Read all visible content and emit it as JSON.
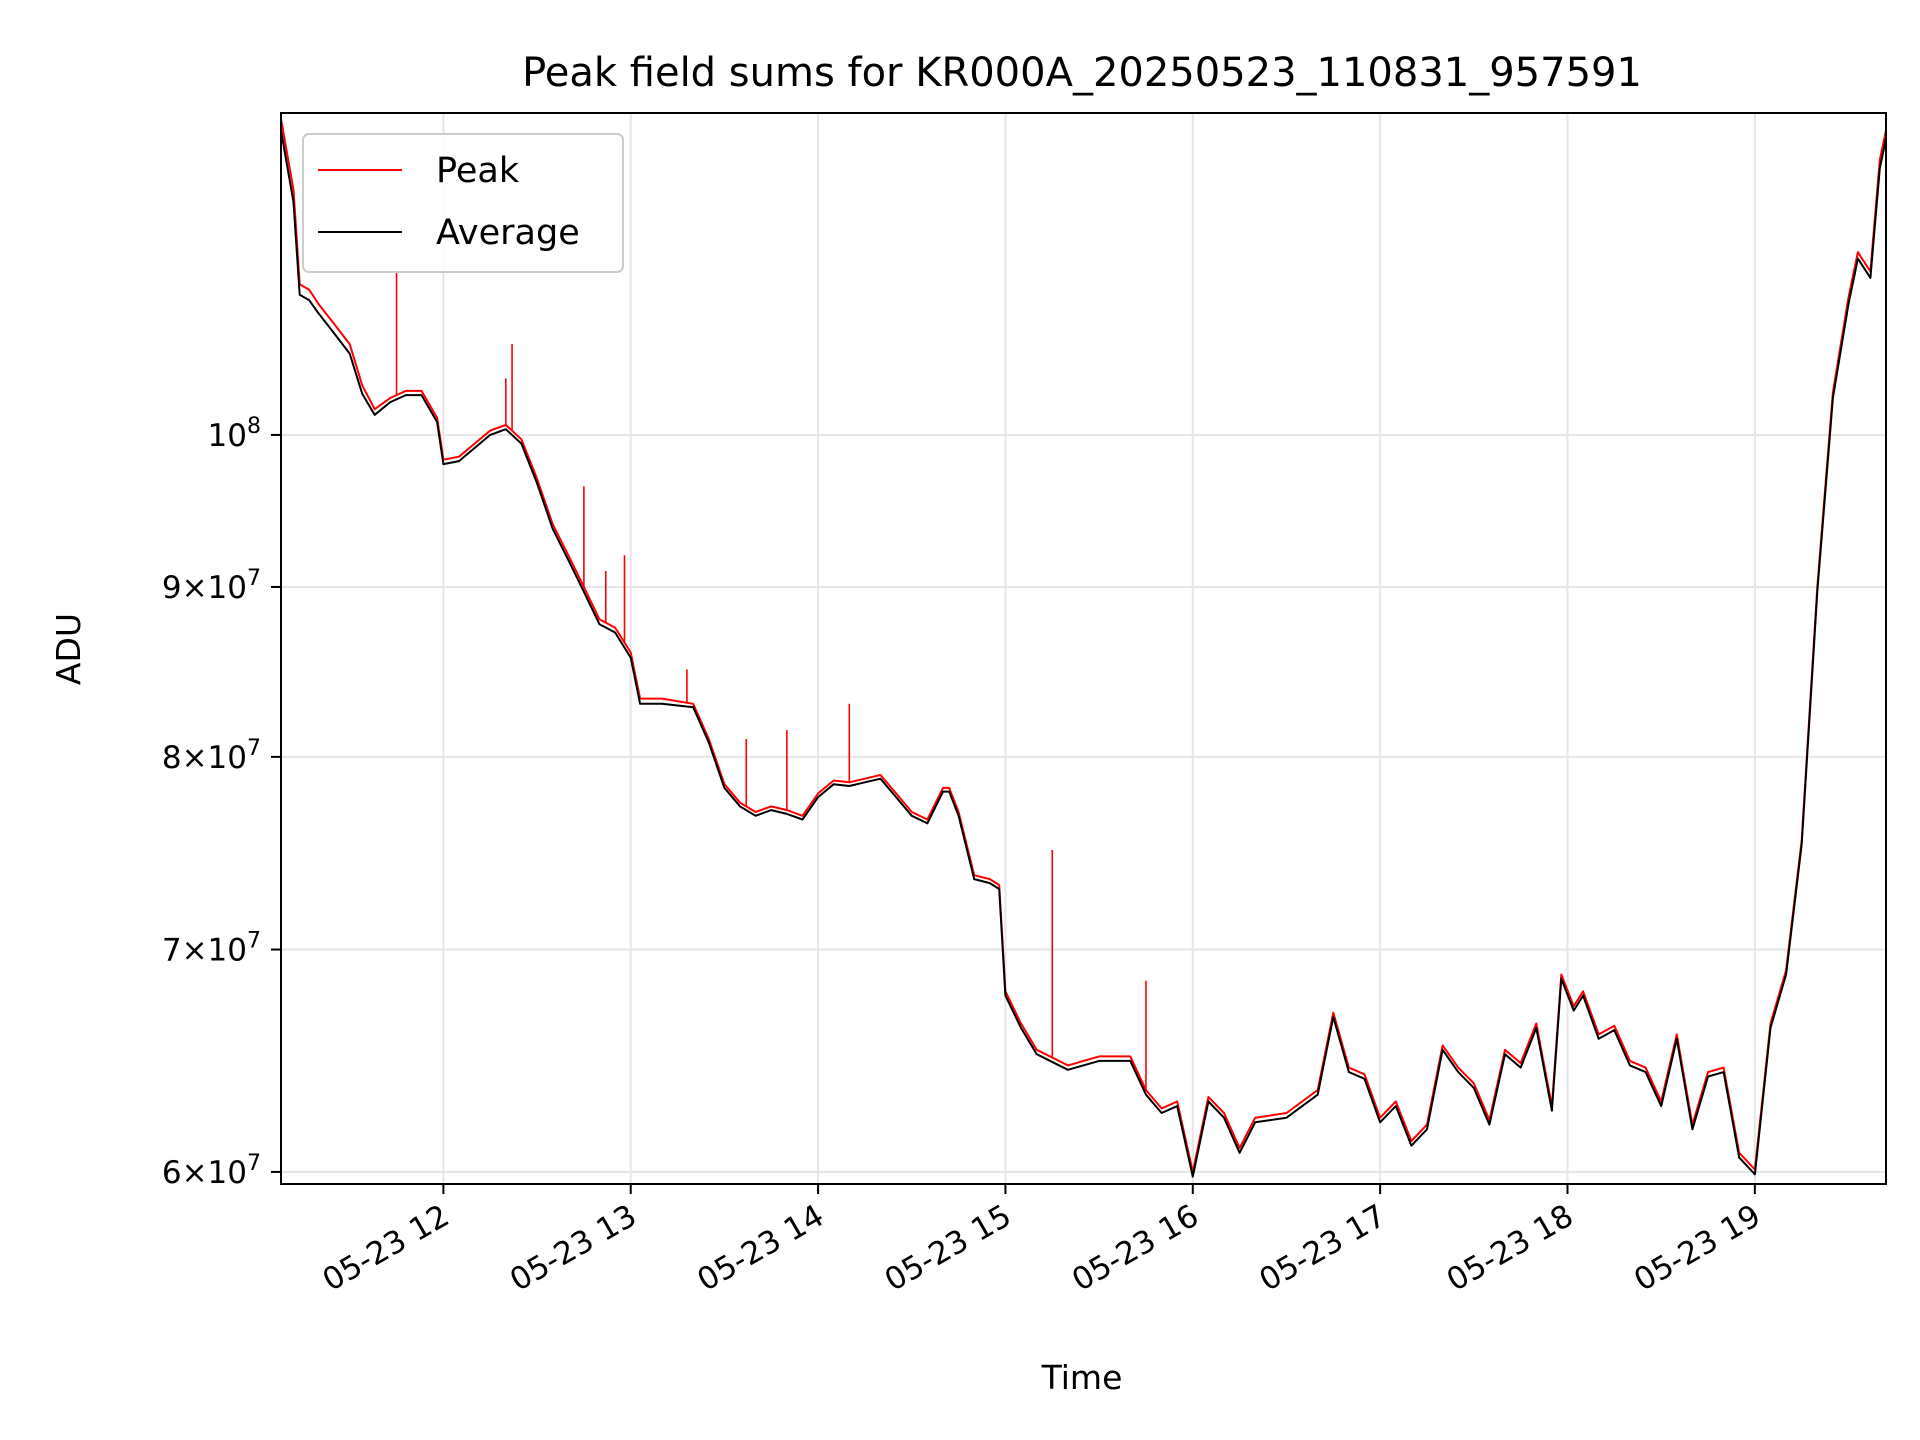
{
  "chart_data": {
    "type": "line",
    "title": "Peak field sums for KR000A_20250523_110831_957591",
    "xlabel": "Time",
    "ylabel": "ADU",
    "y_scale": "log",
    "ylim": [
      59500000,
      125000000
    ],
    "xlim": [
      "2025-05-23 11:08",
      "2025-05-23 19:42"
    ],
    "grid": true,
    "legend": "upper-left",
    "x_ticks": [
      {
        "value": "2025-05-23 12:00",
        "label": "05-23 12"
      },
      {
        "value": "2025-05-23 13:00",
        "label": "05-23 13"
      },
      {
        "value": "2025-05-23 14:00",
        "label": "05-23 14"
      },
      {
        "value": "2025-05-23 15:00",
        "label": "05-23 15"
      },
      {
        "value": "2025-05-23 16:00",
        "label": "05-23 16"
      },
      {
        "value": "2025-05-23 17:00",
        "label": "05-23 17"
      },
      {
        "value": "2025-05-23 18:00",
        "label": "05-23 18"
      },
      {
        "value": "2025-05-23 19:00",
        "label": "05-23 19"
      }
    ],
    "y_ticks": [
      {
        "value": 60000000,
        "mant": "6",
        "exp": "7"
      },
      {
        "value": 70000000,
        "mant": "7",
        "exp": "7"
      },
      {
        "value": 80000000,
        "mant": "8",
        "exp": "7"
      },
      {
        "value": 90000000,
        "mant": "9",
        "exp": "7"
      },
      {
        "value": 100000000,
        "mant": "",
        "exp": "8"
      }
    ],
    "series": [
      {
        "name": "Peak",
        "color": "#ff0000",
        "points": [
          [
            "2025-05-23 11:08",
            124500000
          ],
          [
            "2025-05-23 11:12",
            118500000
          ],
          [
            "2025-05-23 11:14",
            111000000
          ],
          [
            "2025-05-23 11:17",
            110600000
          ],
          [
            "2025-05-23 11:20",
            109500000
          ],
          [
            "2025-05-23 11:25",
            108000000
          ],
          [
            "2025-05-23 11:30",
            106500000
          ],
          [
            "2025-05-23 11:34",
            103500000
          ],
          [
            "2025-05-23 11:38",
            101800000
          ],
          [
            "2025-05-23 11:43",
            102600000
          ],
          [
            "2025-05-23 11:48",
            103100000
          ],
          [
            "2025-05-23 11:53",
            103100000
          ],
          [
            "2025-05-23 11:58",
            101200000
          ],
          [
            "2025-05-23 12:00",
            98300000
          ],
          [
            "2025-05-23 12:05",
            98500000
          ],
          [
            "2025-05-23 12:10",
            99400000
          ],
          [
            "2025-05-23 12:15",
            100300000
          ],
          [
            "2025-05-23 12:20",
            100700000
          ],
          [
            "2025-05-23 12:25",
            99700000
          ],
          [
            "2025-05-23 12:30",
            97000000
          ],
          [
            "2025-05-23 12:35",
            94000000
          ],
          [
            "2025-05-23 12:40",
            92000000
          ],
          [
            "2025-05-23 12:45",
            90000000
          ],
          [
            "2025-05-23 12:50",
            88000000
          ],
          [
            "2025-05-23 12:55",
            87500000
          ],
          [
            "2025-05-23 13:00",
            86000000
          ],
          [
            "2025-05-23 13:03",
            83300000
          ],
          [
            "2025-05-23 13:10",
            83300000
          ],
          [
            "2025-05-23 13:20",
            83000000
          ],
          [
            "2025-05-23 13:25",
            81000000
          ],
          [
            "2025-05-23 13:30",
            78500000
          ],
          [
            "2025-05-23 13:35",
            77500000
          ],
          [
            "2025-05-23 13:40",
            77000000
          ],
          [
            "2025-05-23 13:45",
            77300000
          ],
          [
            "2025-05-23 13:50",
            77100000
          ],
          [
            "2025-05-23 13:55",
            76800000
          ],
          [
            "2025-05-23 14:00",
            78000000
          ],
          [
            "2025-05-23 14:05",
            78700000
          ],
          [
            "2025-05-23 14:10",
            78600000
          ],
          [
            "2025-05-23 14:15",
            78800000
          ],
          [
            "2025-05-23 14:20",
            79000000
          ],
          [
            "2025-05-23 14:25",
            78000000
          ],
          [
            "2025-05-23 14:30",
            77000000
          ],
          [
            "2025-05-23 14:35",
            76600000
          ],
          [
            "2025-05-23 14:40",
            78300000
          ],
          [
            "2025-05-23 14:42",
            78300000
          ],
          [
            "2025-05-23 14:45",
            77000000
          ],
          [
            "2025-05-23 14:50",
            73700000
          ],
          [
            "2025-05-23 14:55",
            73500000
          ],
          [
            "2025-05-23 14:58",
            73200000
          ],
          [
            "2025-05-23 15:00",
            68000000
          ],
          [
            "2025-05-23 15:05",
            66500000
          ],
          [
            "2025-05-23 15:10",
            65300000
          ],
          [
            "2025-05-23 15:20",
            64600000
          ],
          [
            "2025-05-23 15:30",
            65000000
          ],
          [
            "2025-05-23 15:40",
            65000000
          ],
          [
            "2025-05-23 15:45",
            63500000
          ],
          [
            "2025-05-23 15:50",
            62700000
          ],
          [
            "2025-05-23 15:55",
            63000000
          ],
          [
            "2025-05-23 16:00",
            60000000
          ],
          [
            "2025-05-23 16:05",
            63200000
          ],
          [
            "2025-05-23 16:10",
            62500000
          ],
          [
            "2025-05-23 16:15",
            61000000
          ],
          [
            "2025-05-23 16:20",
            62300000
          ],
          [
            "2025-05-23 16:30",
            62500000
          ],
          [
            "2025-05-23 16:40",
            63500000
          ],
          [
            "2025-05-23 16:45",
            67000000
          ],
          [
            "2025-05-23 16:50",
            64500000
          ],
          [
            "2025-05-23 16:55",
            64200000
          ],
          [
            "2025-05-23 17:00",
            62300000
          ],
          [
            "2025-05-23 17:05",
            63000000
          ],
          [
            "2025-05-23 17:10",
            61300000
          ],
          [
            "2025-05-23 17:15",
            62000000
          ],
          [
            "2025-05-23 17:20",
            65500000
          ],
          [
            "2025-05-23 17:25",
            64500000
          ],
          [
            "2025-05-23 17:30",
            63800000
          ],
          [
            "2025-05-23 17:35",
            62200000
          ],
          [
            "2025-05-23 17:40",
            65300000
          ],
          [
            "2025-05-23 17:45",
            64700000
          ],
          [
            "2025-05-23 17:50",
            66500000
          ],
          [
            "2025-05-23 17:55",
            62800000
          ],
          [
            "2025-05-23 17:58",
            68800000
          ],
          [
            "2025-05-23 18:02",
            67300000
          ],
          [
            "2025-05-23 18:05",
            68000000
          ],
          [
            "2025-05-23 18:10",
            66000000
          ],
          [
            "2025-05-23 18:15",
            66400000
          ],
          [
            "2025-05-23 18:20",
            64800000
          ],
          [
            "2025-05-23 18:25",
            64500000
          ],
          [
            "2025-05-23 18:30",
            63000000
          ],
          [
            "2025-05-23 18:35",
            66000000
          ],
          [
            "2025-05-23 18:40",
            62000000
          ],
          [
            "2025-05-23 18:45",
            64300000
          ],
          [
            "2025-05-23 18:50",
            64500000
          ],
          [
            "2025-05-23 18:55",
            60800000
          ],
          [
            "2025-05-23 19:00",
            60100000
          ],
          [
            "2025-05-23 19:05",
            66500000
          ],
          [
            "2025-05-23 19:10",
            69000000
          ],
          [
            "2025-05-23 19:15",
            75500000
          ],
          [
            "2025-05-23 19:20",
            90000000
          ],
          [
            "2025-05-23 19:25",
            103000000
          ],
          [
            "2025-05-23 19:30",
            110000000
          ],
          [
            "2025-05-23 19:33",
            113500000
          ],
          [
            "2025-05-23 19:37",
            112000000
          ],
          [
            "2025-05-23 19:40",
            121000000
          ],
          [
            "2025-05-23 19:42",
            123500000
          ]
        ]
      },
      {
        "name": "Average",
        "color": "#000000",
        "points": [
          [
            "2025-05-23 11:08",
            123500000
          ],
          [
            "2025-05-23 11:12",
            117500000
          ],
          [
            "2025-05-23 11:14",
            110200000
          ],
          [
            "2025-05-23 11:17",
            109800000
          ],
          [
            "2025-05-23 11:20",
            108800000
          ],
          [
            "2025-05-23 11:25",
            107300000
          ],
          [
            "2025-05-23 11:30",
            105800000
          ],
          [
            "2025-05-23 11:34",
            102900000
          ],
          [
            "2025-05-23 11:38",
            101400000
          ],
          [
            "2025-05-23 11:43",
            102300000
          ],
          [
            "2025-05-23 11:48",
            102800000
          ],
          [
            "2025-05-23 11:53",
            102800000
          ],
          [
            "2025-05-23 11:58",
            100900000
          ],
          [
            "2025-05-23 12:00",
            98000000
          ],
          [
            "2025-05-23 12:05",
            98200000
          ],
          [
            "2025-05-23 12:10",
            99100000
          ],
          [
            "2025-05-23 12:15",
            100000000
          ],
          [
            "2025-05-23 12:20",
            100400000
          ],
          [
            "2025-05-23 12:25",
            99400000
          ],
          [
            "2025-05-23 12:30",
            96700000
          ],
          [
            "2025-05-23 12:35",
            93700000
          ],
          [
            "2025-05-23 12:40",
            91700000
          ],
          [
            "2025-05-23 12:45",
            89700000
          ],
          [
            "2025-05-23 12:50",
            87700000
          ],
          [
            "2025-05-23 12:55",
            87200000
          ],
          [
            "2025-05-23 13:00",
            85700000
          ],
          [
            "2025-05-23 13:03",
            83000000
          ],
          [
            "2025-05-23 13:10",
            83000000
          ],
          [
            "2025-05-23 13:20",
            82800000
          ],
          [
            "2025-05-23 13:25",
            80800000
          ],
          [
            "2025-05-23 13:30",
            78300000
          ],
          [
            "2025-05-23 13:35",
            77300000
          ],
          [
            "2025-05-23 13:40",
            76800000
          ],
          [
            "2025-05-23 13:45",
            77100000
          ],
          [
            "2025-05-23 13:50",
            76900000
          ],
          [
            "2025-05-23 13:55",
            76600000
          ],
          [
            "2025-05-23 14:00",
            77800000
          ],
          [
            "2025-05-23 14:05",
            78500000
          ],
          [
            "2025-05-23 14:10",
            78400000
          ],
          [
            "2025-05-23 14:15",
            78600000
          ],
          [
            "2025-05-23 14:20",
            78800000
          ],
          [
            "2025-05-23 14:25",
            77800000
          ],
          [
            "2025-05-23 14:30",
            76800000
          ],
          [
            "2025-05-23 14:35",
            76400000
          ],
          [
            "2025-05-23 14:40",
            78100000
          ],
          [
            "2025-05-23 14:42",
            78100000
          ],
          [
            "2025-05-23 14:45",
            76800000
          ],
          [
            "2025-05-23 14:50",
            73500000
          ],
          [
            "2025-05-23 14:55",
            73300000
          ],
          [
            "2025-05-23 14:58",
            73000000
          ],
          [
            "2025-05-23 15:00",
            67800000
          ],
          [
            "2025-05-23 15:05",
            66300000
          ],
          [
            "2025-05-23 15:10",
            65100000
          ],
          [
            "2025-05-23 15:20",
            64400000
          ],
          [
            "2025-05-23 15:30",
            64800000
          ],
          [
            "2025-05-23 15:40",
            64800000
          ],
          [
            "2025-05-23 15:45",
            63300000
          ],
          [
            "2025-05-23 15:50",
            62500000
          ],
          [
            "2025-05-23 15:55",
            62800000
          ],
          [
            "2025-05-23 16:00",
            59800000
          ],
          [
            "2025-05-23 16:05",
            63000000
          ],
          [
            "2025-05-23 16:10",
            62300000
          ],
          [
            "2025-05-23 16:15",
            60800000
          ],
          [
            "2025-05-23 16:20",
            62100000
          ],
          [
            "2025-05-23 16:30",
            62300000
          ],
          [
            "2025-05-23 16:40",
            63300000
          ],
          [
            "2025-05-23 16:45",
            66800000
          ],
          [
            "2025-05-23 16:50",
            64300000
          ],
          [
            "2025-05-23 16:55",
            64000000
          ],
          [
            "2025-05-23 17:00",
            62100000
          ],
          [
            "2025-05-23 17:05",
            62800000
          ],
          [
            "2025-05-23 17:10",
            61100000
          ],
          [
            "2025-05-23 17:15",
            61800000
          ],
          [
            "2025-05-23 17:20",
            65300000
          ],
          [
            "2025-05-23 17:25",
            64300000
          ],
          [
            "2025-05-23 17:30",
            63600000
          ],
          [
            "2025-05-23 17:35",
            62000000
          ],
          [
            "2025-05-23 17:40",
            65100000
          ],
          [
            "2025-05-23 17:45",
            64500000
          ],
          [
            "2025-05-23 17:50",
            66300000
          ],
          [
            "2025-05-23 17:55",
            62600000
          ],
          [
            "2025-05-23 17:58",
            68600000
          ],
          [
            "2025-05-23 18:02",
            67100000
          ],
          [
            "2025-05-23 18:05",
            67800000
          ],
          [
            "2025-05-23 18:10",
            65800000
          ],
          [
            "2025-05-23 18:15",
            66200000
          ],
          [
            "2025-05-23 18:20",
            64600000
          ],
          [
            "2025-05-23 18:25",
            64300000
          ],
          [
            "2025-05-23 18:30",
            62800000
          ],
          [
            "2025-05-23 18:35",
            65800000
          ],
          [
            "2025-05-23 18:40",
            61800000
          ],
          [
            "2025-05-23 18:45",
            64100000
          ],
          [
            "2025-05-23 18:50",
            64300000
          ],
          [
            "2025-05-23 18:55",
            60600000
          ],
          [
            "2025-05-23 19:00",
            59900000
          ],
          [
            "2025-05-23 19:05",
            66300000
          ],
          [
            "2025-05-23 19:10",
            68800000
          ],
          [
            "2025-05-23 19:15",
            75300000
          ],
          [
            "2025-05-23 19:20",
            89700000
          ],
          [
            "2025-05-23 19:25",
            102600000
          ],
          [
            "2025-05-23 19:30",
            109500000
          ],
          [
            "2025-05-23 19:33",
            113000000
          ],
          [
            "2025-05-23 19:37",
            111500000
          ],
          [
            "2025-05-23 19:40",
            120300000
          ],
          [
            "2025-05-23 19:42",
            122800000
          ]
        ]
      }
    ],
    "peak_spikes": [
      [
        "2025-05-23 11:45",
        112000000
      ],
      [
        "2025-05-23 12:20",
        104000000
      ],
      [
        "2025-05-23 12:22",
        106500000
      ],
      [
        "2025-05-23 12:45",
        96500000
      ],
      [
        "2025-05-23 12:52",
        91000000
      ],
      [
        "2025-05-23 12:58",
        92000000
      ],
      [
        "2025-05-23 13:18",
        85000000
      ],
      [
        "2025-05-23 13:37",
        81000000
      ],
      [
        "2025-05-23 13:50",
        81500000
      ],
      [
        "2025-05-23 14:10",
        83000000
      ],
      [
        "2025-05-23 15:15",
        75000000
      ],
      [
        "2025-05-23 15:45",
        68500000
      ]
    ]
  }
}
